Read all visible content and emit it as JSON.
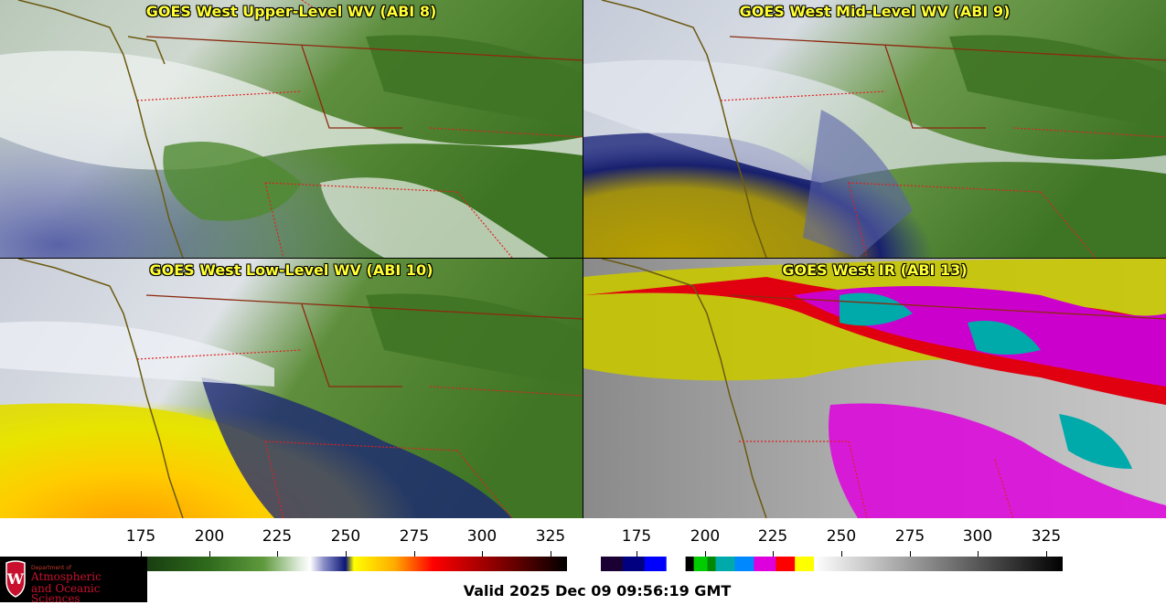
{
  "panels": [
    {
      "title": "GOES West Upper-Level WV (ABI 8)",
      "style": "wv_upper"
    },
    {
      "title": "GOES West Mid-Level WV (ABI 9)",
      "style": "wv_mid"
    },
    {
      "title": "GOES West Low-Level WV (ABI 10)",
      "style": "wv_low"
    },
    {
      "title": "GOES West IR (ABI 13)",
      "style": "ir"
    }
  ],
  "colorbars": {
    "wv": {
      "ticks": [
        "175",
        "200",
        "225",
        "250",
        "275",
        "300",
        "325"
      ],
      "range": [
        162,
        331
      ],
      "stops": [
        {
          "v": 162,
          "c": "#0a1f0a"
        },
        {
          "v": 200,
          "c": "#2f6b1c"
        },
        {
          "v": 220,
          "c": "#5f9a3d"
        },
        {
          "v": 232,
          "c": "#d6e6d0"
        },
        {
          "v": 237,
          "c": "#ffffff"
        },
        {
          "v": 242,
          "c": "#8a8ec8"
        },
        {
          "v": 250,
          "c": "#0c1675"
        },
        {
          "v": 253,
          "c": "#ffff00"
        },
        {
          "v": 268,
          "c": "#ffaa00"
        },
        {
          "v": 282,
          "c": "#ff0000"
        },
        {
          "v": 305,
          "c": "#8a0000"
        },
        {
          "v": 331,
          "c": "#000000"
        }
      ]
    },
    "ir": {
      "ticks": [
        "175",
        "200",
        "225",
        "250",
        "275",
        "300",
        "325"
      ],
      "range": [
        162,
        331
      ],
      "segments": [
        {
          "from": 162,
          "to": 170,
          "c": "#1a0033"
        },
        {
          "from": 170,
          "to": 178,
          "c": "#000080"
        },
        {
          "from": 178,
          "to": 186,
          "c": "#0000ff"
        },
        {
          "from": 186,
          "to": 193,
          "c": "#ffffff"
        },
        {
          "from": 193,
          "to": 196,
          "c": "#000000"
        },
        {
          "from": 196,
          "to": 201,
          "c": "#00cc00"
        },
        {
          "from": 201,
          "to": 204,
          "c": "#008800"
        },
        {
          "from": 204,
          "to": 211,
          "c": "#00aaaa"
        },
        {
          "from": 211,
          "to": 218,
          "c": "#0088ff"
        },
        {
          "from": 218,
          "to": 226,
          "c": "#dd00dd"
        },
        {
          "from": 226,
          "to": 233,
          "c": "#ff0000"
        },
        {
          "from": 233,
          "to": 240,
          "c": "#ffff00"
        },
        {
          "from": 240,
          "to": 331,
          "c": "gradient"
        }
      ]
    }
  },
  "logo": {
    "line1": "Department of",
    "line2": "Atmospheric",
    "line3": "and Oceanic Sciences"
  },
  "valid_time": "Valid 2025 Dec 09 09:56:19 GMT"
}
